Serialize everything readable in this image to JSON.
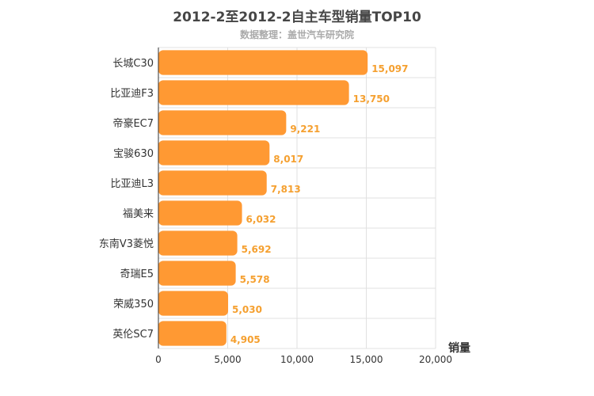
{
  "chart_data": {
    "type": "bar",
    "orientation": "horizontal",
    "title": "2012-2至2012-2自主车型销量TOP10",
    "subtitle": "数据整理：盖世汽车研究院",
    "xlabel": "销量",
    "ylabel": "",
    "categories": [
      "长城C30",
      "比亚迪F3",
      "帝豪EC7",
      "宝骏630",
      "比亚迪L3",
      "福美来",
      "东南V3菱悦",
      "奇瑞E5",
      "荣威350",
      "英伦SC7"
    ],
    "values": [
      15097,
      13750,
      9221,
      8017,
      7813,
      6032,
      5692,
      5578,
      5030,
      4905
    ],
    "value_labels": [
      "15,097",
      "13,750",
      "9,221",
      "8,017",
      "7,813",
      "6,032",
      "5,692",
      "5,578",
      "5,030",
      "4,905"
    ],
    "xlim": [
      0,
      20000
    ],
    "xticks": [
      0,
      5000,
      10000,
      15000,
      20000
    ],
    "xtick_labels": [
      "0",
      "5,000",
      "10,000",
      "15,000",
      "20,000"
    ],
    "grid": true,
    "bar_color": "#ff9933",
    "value_label_color": "#f5a030"
  }
}
